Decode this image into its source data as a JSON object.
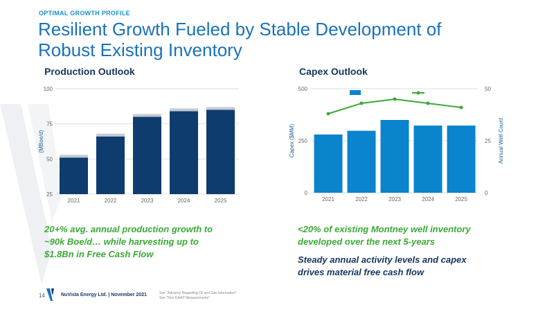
{
  "header": {
    "eyebrow": "OPTIMAL GROWTH PROFILE",
    "title_line1": "Resilient Growth Fueled by Stable Development of",
    "title_line2": "Robust Existing Inventory"
  },
  "colors": {
    "navy": "#14355e",
    "bar_navy": "#0f3c6e",
    "bar_blue": "#0a84cc",
    "line_green": "#3aa935",
    "title_blue": "#1a72b8"
  },
  "chart_data": [
    {
      "type": "bar",
      "title": "Production Outlook",
      "categories": [
        "2021",
        "2022",
        "2023",
        "2024",
        "2025"
      ],
      "values": [
        51,
        66,
        80,
        84,
        85
      ],
      "ylabel": "(MBoe/d)",
      "ylim": [
        25,
        100
      ],
      "yticks": [
        "100",
        "75",
        "50",
        "25"
      ],
      "grid": true
    },
    {
      "type": "bar+line",
      "title": "Capex Outlook",
      "categories": [
        "2021",
        "2022",
        "2023",
        "2024",
        "2025"
      ],
      "series": [
        {
          "name": "Capex",
          "type": "bar",
          "axis": "left",
          "values": [
            280,
            298,
            350,
            323,
            323
          ]
        },
        {
          "name": "Well Count",
          "type": "line",
          "axis": "right",
          "values": [
            38,
            43,
            45,
            43,
            41
          ]
        }
      ],
      "ylabel": "Capex ($MM)",
      "ylabel_right": "Annual Well Count",
      "ylim": [
        0,
        500
      ],
      "ylim_right": [
        0,
        50
      ],
      "yticks": [
        "500",
        "250",
        "0"
      ],
      "yticks_right": [
        "50",
        "25",
        "0"
      ],
      "legend": "top-center"
    }
  ],
  "captions": {
    "left_line1": "20+% avg. annual production growth to",
    "left_line2": "~90k Boe/d… while harvesting up to",
    "left_line3": "$1.8Bn in Free Cash Flow",
    "right_line1": "<20% of existing Montney well inventory",
    "right_line2": "developed over the next 5-years",
    "right_line3": "Steady annual activity levels and capex",
    "right_line4": "drives material free cash flow"
  },
  "footer": {
    "page": "14",
    "company": "NuVista Energy Ltd. | November 2021",
    "note1": "See \"Advisory Regarding Oil and Gas Information\"",
    "note2": "See \"Non-GAAP Measurements\""
  }
}
